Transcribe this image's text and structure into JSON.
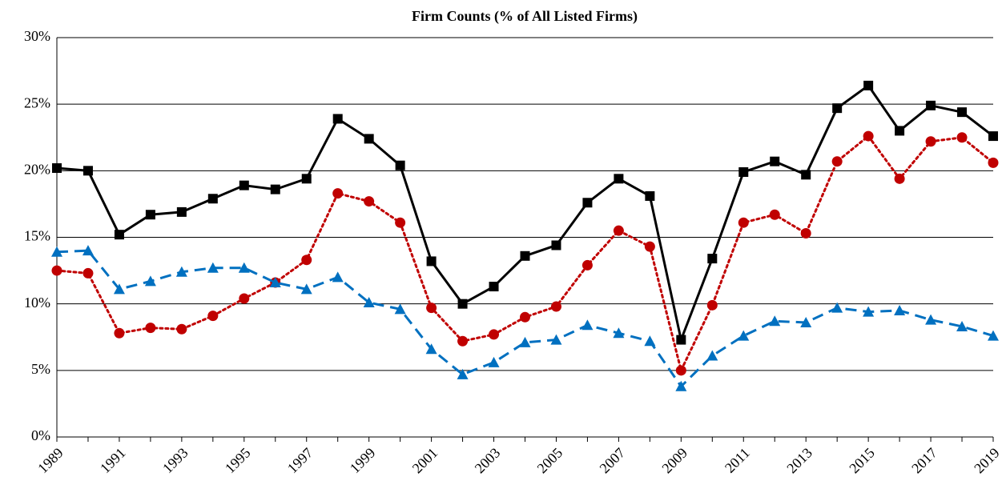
{
  "chart_data": {
    "type": "line",
    "title": "Firm Counts (% of All Listed Firms)",
    "categories": [
      "1989",
      null,
      "1991",
      null,
      "1993",
      null,
      "1995",
      null,
      "1997",
      null,
      "1999",
      null,
      "2001",
      null,
      "2003",
      null,
      "2005",
      null,
      "2007",
      null,
      "2009",
      null,
      "2011",
      null,
      "2013",
      null,
      "2015",
      null,
      "2017",
      null,
      "2019"
    ],
    "series": [
      {
        "color": "#000000",
        "line": "solid",
        "marker": "square",
        "values": [
          20.2,
          20.0,
          15.2,
          16.7,
          16.9,
          17.9,
          18.9,
          18.6,
          19.4,
          23.9,
          22.4,
          20.4,
          13.2,
          10.0,
          11.3,
          13.6,
          14.4,
          17.6,
          19.4,
          18.1,
          7.3,
          13.4,
          19.9,
          20.7,
          19.7,
          24.7,
          26.4,
          23.0,
          24.9,
          24.4,
          22.6
        ]
      },
      {
        "color": "#c00000",
        "line": "dotted",
        "marker": "circle",
        "values": [
          12.5,
          12.3,
          7.8,
          8.2,
          8.1,
          9.1,
          10.4,
          11.6,
          13.3,
          18.3,
          17.7,
          16.1,
          9.7,
          7.2,
          7.7,
          9.0,
          9.8,
          12.9,
          15.5,
          14.3,
          5.0,
          9.9,
          16.1,
          16.7,
          15.3,
          20.7,
          22.6,
          19.4,
          22.2,
          22.5,
          20.6
        ]
      },
      {
        "color": "#0070c0",
        "line": "dashed",
        "marker": "triangle",
        "values": [
          13.9,
          14.0,
          11.1,
          11.7,
          12.4,
          12.7,
          12.7,
          11.6,
          11.1,
          12.0,
          10.1,
          9.6,
          6.6,
          4.7,
          5.6,
          7.1,
          7.3,
          8.4,
          7.8,
          7.2,
          3.8,
          6.1,
          7.6,
          8.7,
          8.6,
          9.7,
          9.4,
          9.5,
          8.8,
          8.3,
          7.6
        ]
      }
    ],
    "ylim": [
      0,
      30
    ],
    "yticks": [
      {
        "value": 0,
        "label": "0%"
      },
      {
        "value": 5,
        "label": "5%"
      },
      {
        "value": 10,
        "label": "10%"
      },
      {
        "value": 15,
        "label": "15%"
      },
      {
        "value": 20,
        "label": "20%"
      },
      {
        "value": 25,
        "label": "25%"
      },
      {
        "value": 30,
        "label": "30%"
      }
    ],
    "grid": true
  }
}
